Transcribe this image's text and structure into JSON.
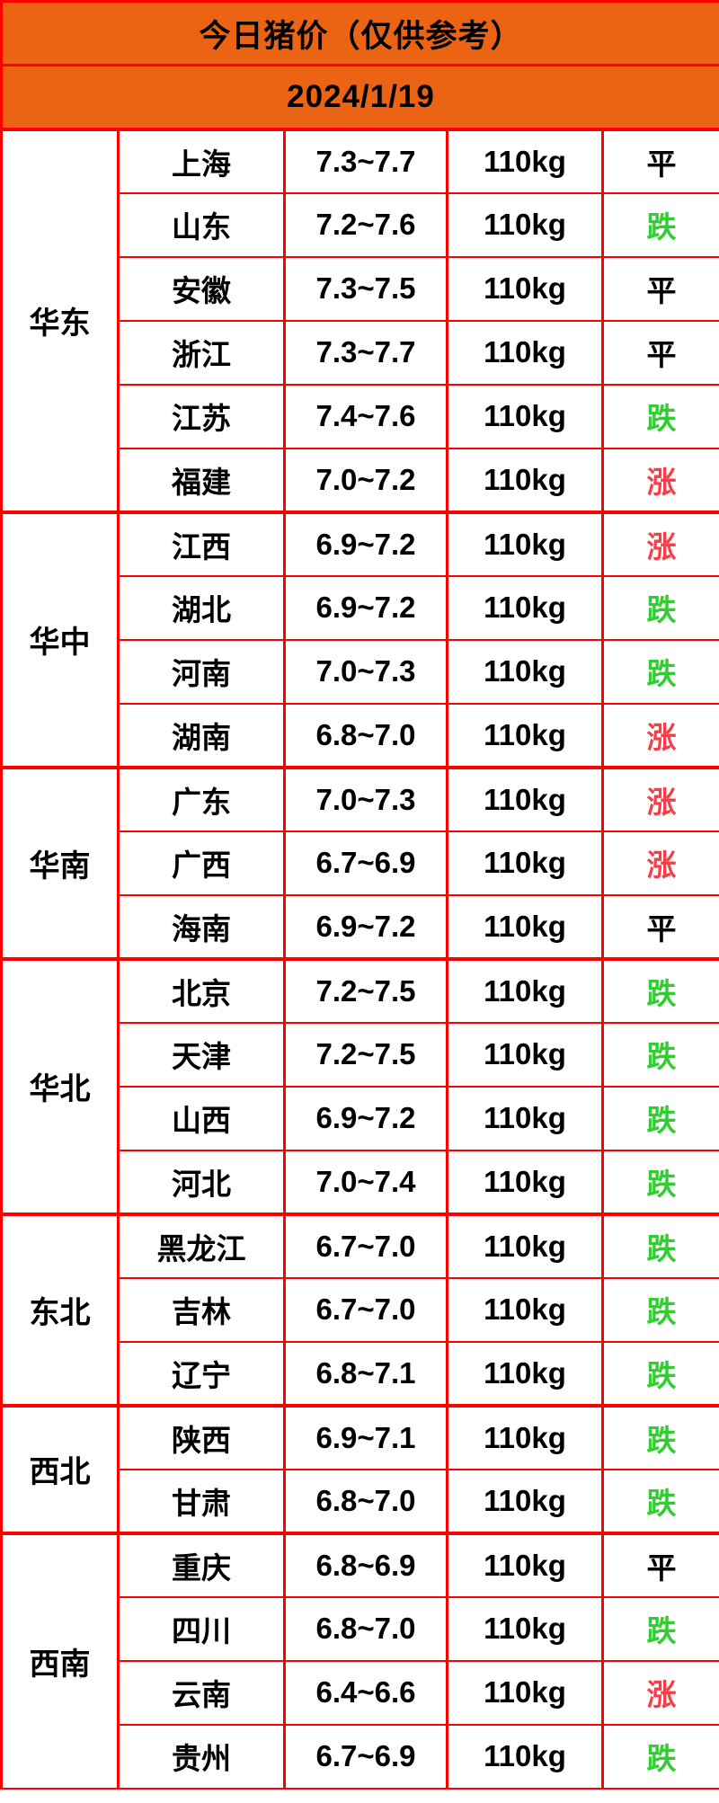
{
  "title": "今日猪价（仅供参考）",
  "date": "2024/1/19",
  "theme": {
    "banner_bg": "#EB6413",
    "grid_border": "#FE0000",
    "status_colors": {
      "涨": "#FA3C46",
      "跌": "#33CC33",
      "平": "#000000"
    }
  },
  "regions": [
    {
      "name": "华东",
      "provinces": [
        {
          "name": "上海",
          "price": "7.3~7.7",
          "weight": "110kg",
          "status": "平"
        },
        {
          "name": "山东",
          "price": "7.2~7.6",
          "weight": "110kg",
          "status": "跌"
        },
        {
          "name": "安徽",
          "price": "7.3~7.5",
          "weight": "110kg",
          "status": "平"
        },
        {
          "name": "浙江",
          "price": "7.3~7.7",
          "weight": "110kg",
          "status": "平"
        },
        {
          "name": "江苏",
          "price": "7.4~7.6",
          "weight": "110kg",
          "status": "跌"
        },
        {
          "name": "福建",
          "price": "7.0~7.2",
          "weight": "110kg",
          "status": "涨"
        }
      ]
    },
    {
      "name": "华中",
      "provinces": [
        {
          "name": "江西",
          "price": "6.9~7.2",
          "weight": "110kg",
          "status": "涨"
        },
        {
          "name": "湖北",
          "price": "6.9~7.2",
          "weight": "110kg",
          "status": "跌"
        },
        {
          "name": "河南",
          "price": "7.0~7.3",
          "weight": "110kg",
          "status": "跌"
        },
        {
          "name": "湖南",
          "price": "6.8~7.0",
          "weight": "110kg",
          "status": "涨"
        }
      ]
    },
    {
      "name": "华南",
      "provinces": [
        {
          "name": "广东",
          "price": "7.0~7.3",
          "weight": "110kg",
          "status": "涨"
        },
        {
          "name": "广西",
          "price": "6.7~6.9",
          "weight": "110kg",
          "status": "涨"
        },
        {
          "name": "海南",
          "price": "6.9~7.2",
          "weight": "110kg",
          "status": "平"
        }
      ]
    },
    {
      "name": "华北",
      "provinces": [
        {
          "name": "北京",
          "price": "7.2~7.5",
          "weight": "110kg",
          "status": "跌"
        },
        {
          "name": "天津",
          "price": "7.2~7.5",
          "weight": "110kg",
          "status": "跌"
        },
        {
          "name": "山西",
          "price": "6.9~7.2",
          "weight": "110kg",
          "status": "跌"
        },
        {
          "name": "河北",
          "price": "7.0~7.4",
          "weight": "110kg",
          "status": "跌"
        }
      ]
    },
    {
      "name": "东北",
      "provinces": [
        {
          "name": "黑龙江",
          "price": "6.7~7.0",
          "weight": "110kg",
          "status": "跌"
        },
        {
          "name": "吉林",
          "price": "6.7~7.0",
          "weight": "110kg",
          "status": "跌"
        },
        {
          "name": "辽宁",
          "price": "6.8~7.1",
          "weight": "110kg",
          "status": "跌"
        }
      ]
    },
    {
      "name": "西北",
      "provinces": [
        {
          "name": "陕西",
          "price": "6.9~7.1",
          "weight": "110kg",
          "status": "跌"
        },
        {
          "name": "甘肃",
          "price": "6.8~7.0",
          "weight": "110kg",
          "status": "跌"
        }
      ]
    },
    {
      "name": "西南",
      "provinces": [
        {
          "name": "重庆",
          "price": "6.8~6.9",
          "weight": "110kg",
          "status": "平"
        },
        {
          "name": "四川",
          "price": "6.8~7.0",
          "weight": "110kg",
          "status": "跌"
        },
        {
          "name": "云南",
          "price": "6.4~6.6",
          "weight": "110kg",
          "status": "涨"
        },
        {
          "name": "贵州",
          "price": "6.7~6.9",
          "weight": "110kg",
          "status": "跌"
        }
      ]
    }
  ],
  "chart_data": {
    "type": "table",
    "title": "今日猪价（仅供参考）",
    "subtitle": "2024/1/19",
    "rows": [
      [
        "华东",
        "上海",
        "7.3~7.7",
        "110kg",
        "平"
      ],
      [
        "华东",
        "山东",
        "7.2~7.6",
        "110kg",
        "跌"
      ],
      [
        "华东",
        "安徽",
        "7.3~7.5",
        "110kg",
        "平"
      ],
      [
        "华东",
        "浙江",
        "7.3~7.7",
        "110kg",
        "平"
      ],
      [
        "华东",
        "江苏",
        "7.4~7.6",
        "110kg",
        "跌"
      ],
      [
        "华东",
        "福建",
        "7.0~7.2",
        "110kg",
        "涨"
      ],
      [
        "华中",
        "江西",
        "6.9~7.2",
        "110kg",
        "涨"
      ],
      [
        "华中",
        "湖北",
        "6.9~7.2",
        "110kg",
        "跌"
      ],
      [
        "华中",
        "河南",
        "7.0~7.3",
        "110kg",
        "跌"
      ],
      [
        "华中",
        "湖南",
        "6.8~7.0",
        "110kg",
        "涨"
      ],
      [
        "华南",
        "广东",
        "7.0~7.3",
        "110kg",
        "涨"
      ],
      [
        "华南",
        "广西",
        "6.7~6.9",
        "110kg",
        "涨"
      ],
      [
        "华南",
        "海南",
        "6.9~7.2",
        "110kg",
        "平"
      ],
      [
        "华北",
        "北京",
        "7.2~7.5",
        "110kg",
        "跌"
      ],
      [
        "华北",
        "天津",
        "7.2~7.5",
        "110kg",
        "跌"
      ],
      [
        "华北",
        "山西",
        "6.9~7.2",
        "110kg",
        "跌"
      ],
      [
        "华北",
        "河北",
        "7.0~7.4",
        "110kg",
        "跌"
      ],
      [
        "东北",
        "黑龙江",
        "6.7~7.0",
        "110kg",
        "跌"
      ],
      [
        "东北",
        "吉林",
        "6.7~7.0",
        "110kg",
        "跌"
      ],
      [
        "东北",
        "辽宁",
        "6.8~7.1",
        "110kg",
        "跌"
      ],
      [
        "西北",
        "陕西",
        "6.9~7.1",
        "110kg",
        "跌"
      ],
      [
        "西北",
        "甘肃",
        "6.8~7.0",
        "110kg",
        "跌"
      ],
      [
        "西南",
        "重庆",
        "6.8~6.9",
        "110kg",
        "平"
      ],
      [
        "西南",
        "四川",
        "6.8~7.0",
        "110kg",
        "跌"
      ],
      [
        "西南",
        "云南",
        "6.4~6.6",
        "110kg",
        "涨"
      ],
      [
        "西南",
        "贵州",
        "6.7~6.9",
        "110kg",
        "跌"
      ]
    ],
    "layout": {
      "region_column_merged": true,
      "grid": true,
      "legend": "none"
    }
  }
}
